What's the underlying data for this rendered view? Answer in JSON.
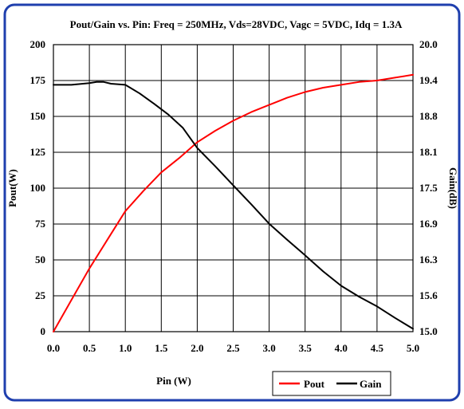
{
  "chart_data": {
    "type": "line",
    "title": "Pout/Gain vs. Pin: Freq = 250MHz, Vds=28VDC, Vagc = 5VDC, Idq = 1.3A",
    "xlabel": "Pin (W)",
    "ylabel_left": "Pout(W)",
    "ylabel_right": "Gain(dB)",
    "xlim": [
      0,
      5
    ],
    "ylim_left": [
      0,
      200
    ],
    "ylim_right": [
      15.0,
      20.0
    ],
    "x_ticks": [
      "0.0",
      "0.5",
      "1.0",
      "1.5",
      "2.0",
      "2.5",
      "3.0",
      "3.5",
      "4.0",
      "4.5",
      "5.0"
    ],
    "y_ticks_left": [
      "0",
      "25",
      "50",
      "75",
      "100",
      "125",
      "150",
      "175",
      "200"
    ],
    "y_ticks_right": [
      "15.0",
      "15.6",
      "16.3",
      "16.9",
      "17.5",
      "18.1",
      "18.8",
      "19.4",
      "20.0"
    ],
    "grid": true,
    "legend_position": "bottom-right",
    "series": [
      {
        "name": "Pout",
        "axis": "left",
        "color": "#ff0000",
        "x": [
          0.0,
          0.25,
          0.5,
          0.75,
          1.0,
          1.25,
          1.5,
          1.75,
          2.0,
          2.25,
          2.5,
          2.75,
          3.0,
          3.25,
          3.5,
          3.75,
          4.0,
          4.25,
          4.5,
          4.75,
          5.0
        ],
        "y": [
          0,
          22,
          44,
          64,
          84,
          98,
          111,
          121,
          132,
          140,
          147,
          153,
          158,
          163,
          167,
          170,
          172,
          174,
          175,
          177,
          179
        ]
      },
      {
        "name": "Gain",
        "axis": "right",
        "color": "#000000",
        "x": [
          0.0,
          0.25,
          0.5,
          0.6,
          0.7,
          0.8,
          1.0,
          1.2,
          1.4,
          1.6,
          1.8,
          2.0,
          2.25,
          2.5,
          2.75,
          3.0,
          3.25,
          3.5,
          3.75,
          4.0,
          4.25,
          4.5,
          4.75,
          5.0
        ],
        "y": [
          19.3,
          19.3,
          19.33,
          19.35,
          19.35,
          19.32,
          19.3,
          19.15,
          18.97,
          18.78,
          18.55,
          18.2,
          17.88,
          17.55,
          17.22,
          16.88,
          16.6,
          16.33,
          16.05,
          15.8,
          15.61,
          15.44,
          15.24,
          15.05
        ]
      }
    ]
  }
}
